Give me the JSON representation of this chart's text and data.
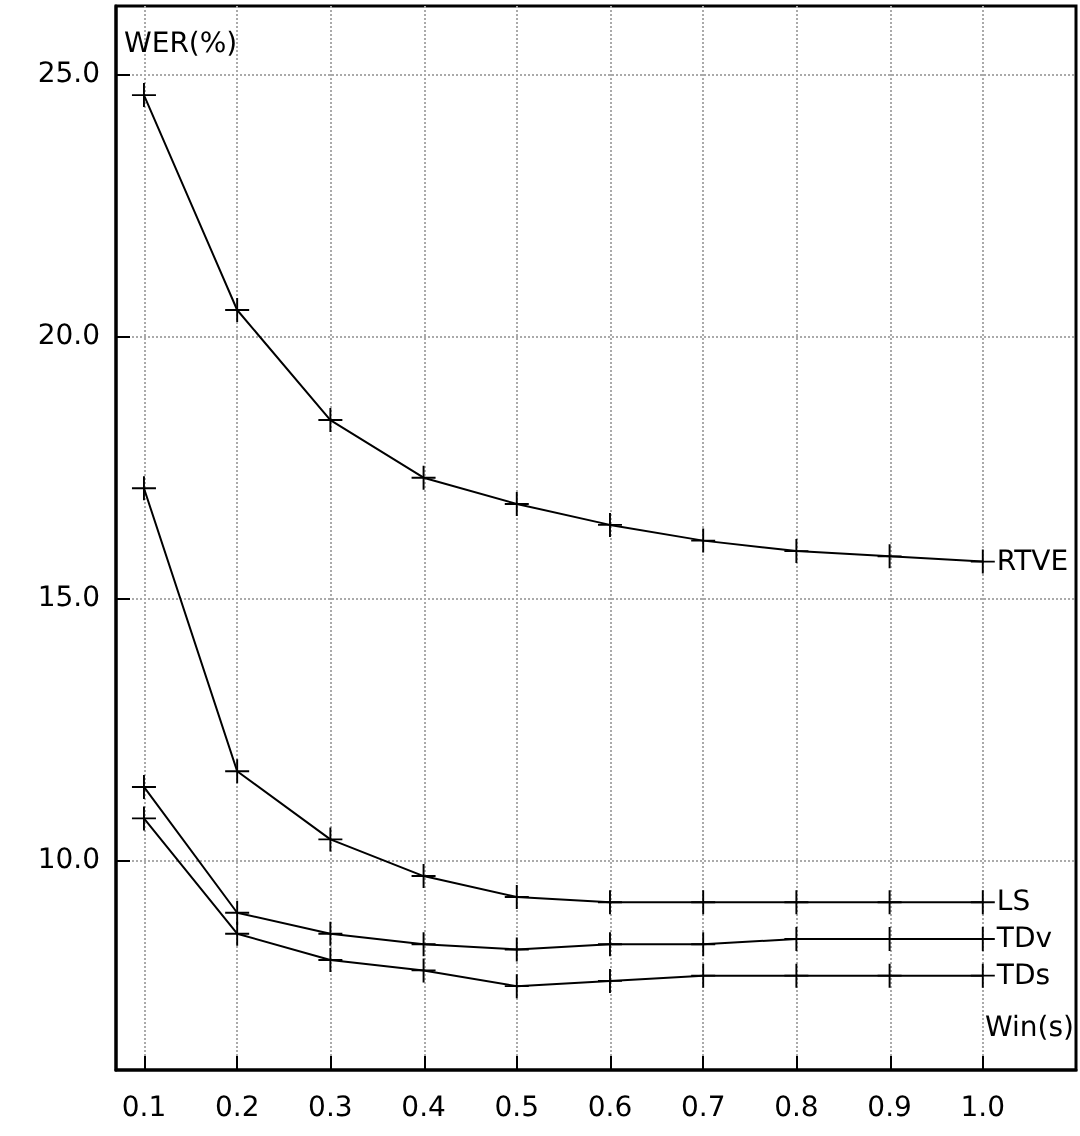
{
  "chart_data": {
    "type": "line",
    "xlabel": "Win(s)",
    "ylabel": "WER(%)",
    "x": [
      0.1,
      0.2,
      0.3,
      0.4,
      0.5,
      0.6,
      0.7,
      0.8,
      0.9,
      1.0
    ],
    "series": [
      {
        "name": "RTVE",
        "color": "#000000",
        "values": [
          24.6,
          20.5,
          18.4,
          17.3,
          16.8,
          16.4,
          16.1,
          15.9,
          15.8,
          15.7
        ]
      },
      {
        "name": "LS",
        "color": "#000000",
        "values": [
          17.1,
          11.7,
          10.4,
          9.7,
          9.3,
          9.2,
          9.2,
          9.2,
          9.2,
          9.2
        ]
      },
      {
        "name": "TDv",
        "color": "#000000",
        "values": [
          11.4,
          9.0,
          8.6,
          8.4,
          8.3,
          8.4,
          8.4,
          8.5,
          8.5,
          8.5
        ]
      },
      {
        "name": "TDs",
        "color": "#000000",
        "values": [
          10.8,
          8.6,
          8.1,
          7.9,
          7.6,
          7.7,
          7.8,
          7.8,
          7.8,
          7.8
        ]
      }
    ],
    "xlim": [
      0.07,
      1.1
    ],
    "xticks": [
      0.1,
      0.2,
      0.3,
      0.4,
      0.5,
      0.6,
      0.7,
      0.8,
      0.9,
      {
        "value": 1,
        "label": "1.0"
      }
    ],
    "ylim": [
      6,
      26.3
    ],
    "yticks": [
      {
        "value": 10,
        "label": "10.0"
      },
      {
        "value": 15,
        "label": "15.0"
      },
      {
        "value": 20,
        "label": "20.0"
      },
      {
        "value": 25,
        "label": "25.0"
      }
    ],
    "grid": true,
    "legend": false,
    "marker": "cross",
    "line_style": "solid"
  }
}
